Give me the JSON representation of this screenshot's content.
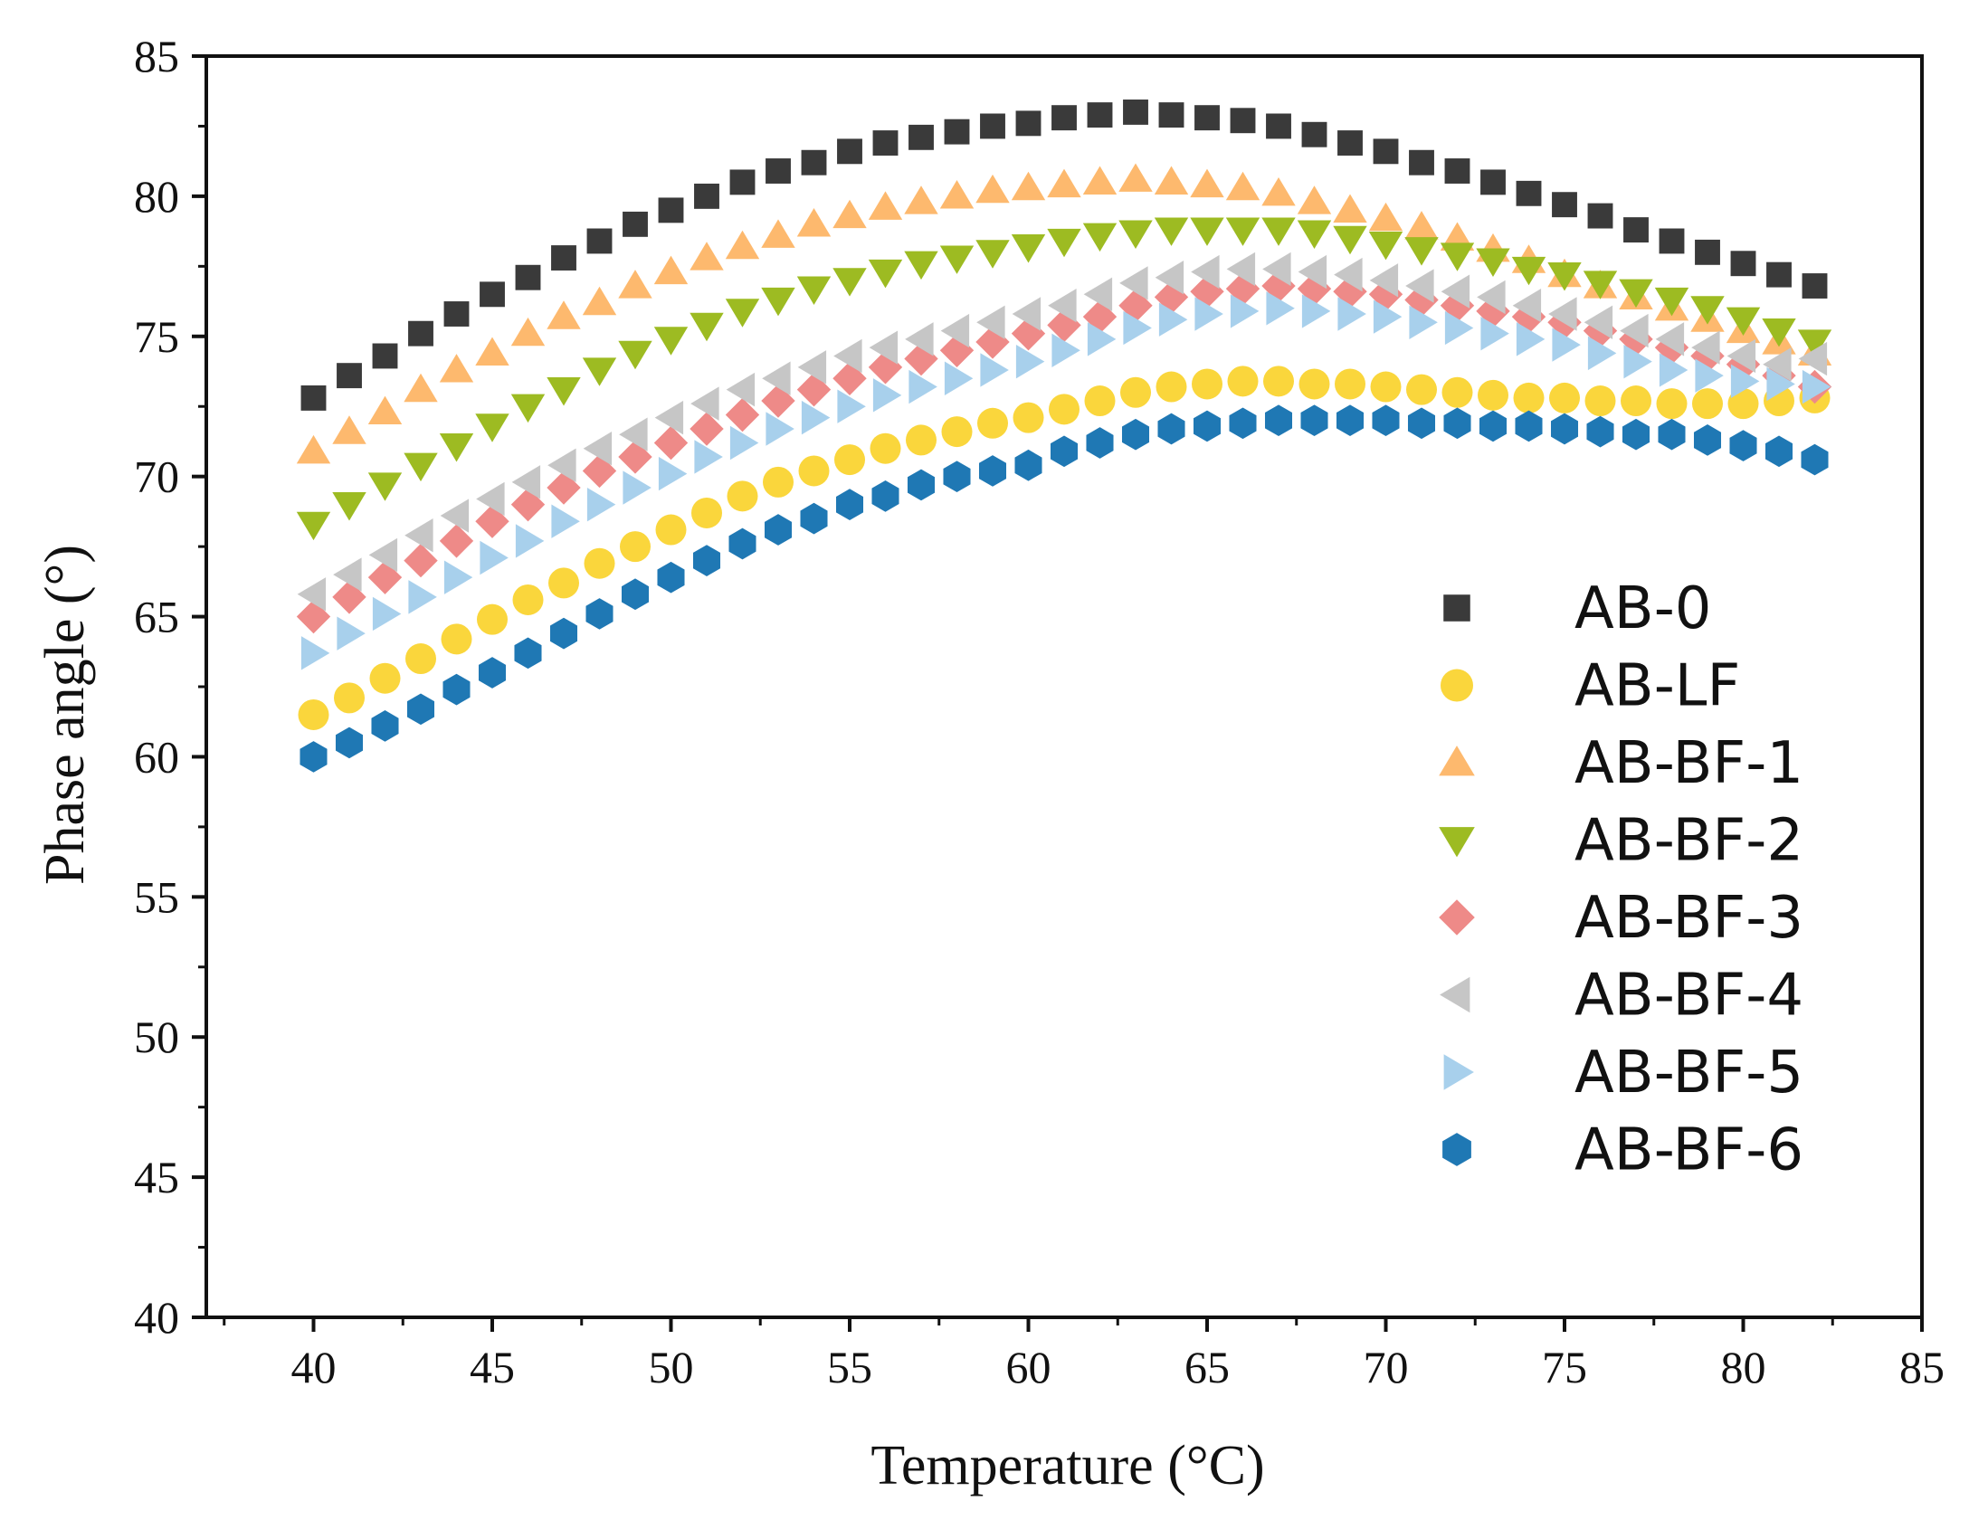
{
  "chart_data": {
    "type": "scatter",
    "title": "",
    "xlabel": "Temperature (°C)",
    "ylabel": "Phase angle (°)",
    "xlim": [
      37,
      85
    ],
    "ylim": [
      40,
      85
    ],
    "x_ticks": [
      "40",
      "45",
      "50",
      "55",
      "60",
      "65",
      "70",
      "75",
      "80",
      "85"
    ],
    "y_ticks": [
      "40",
      "45",
      "50",
      "55",
      "60",
      "65",
      "70",
      "75",
      "80",
      "85"
    ],
    "grid": false,
    "legend_position": "right",
    "x": [
      40,
      41,
      42,
      43,
      44,
      45,
      46,
      47,
      48,
      49,
      50,
      51,
      52,
      53,
      54,
      55,
      56,
      57,
      58,
      59,
      60,
      61,
      62,
      63,
      64,
      65,
      66,
      67,
      68,
      69,
      70,
      71,
      72,
      73,
      74,
      75,
      76,
      77,
      78,
      79,
      80,
      81,
      82
    ],
    "series": [
      {
        "name": "AB-0",
        "marker": "square",
        "color": "#3a3a3a",
        "values": [
          72.8,
          73.6,
          74.3,
          75.1,
          75.8,
          76.5,
          77.1,
          77.8,
          78.4,
          79.0,
          79.5,
          80.0,
          80.5,
          80.9,
          81.2,
          81.6,
          81.9,
          82.1,
          82.3,
          82.5,
          82.6,
          82.8,
          82.9,
          83.0,
          82.9,
          82.8,
          82.7,
          82.5,
          82.2,
          81.9,
          81.6,
          81.2,
          80.9,
          80.5,
          80.1,
          79.7,
          79.3,
          78.8,
          78.4,
          78.0,
          77.6,
          77.2,
          76.8
        ]
      },
      {
        "name": "AB-LF",
        "marker": "circle",
        "color": "#fad63c",
        "values": [
          61.5,
          62.1,
          62.8,
          63.5,
          64.2,
          64.9,
          65.6,
          66.2,
          66.9,
          67.5,
          68.1,
          68.7,
          69.3,
          69.8,
          70.2,
          70.6,
          71.0,
          71.3,
          71.6,
          71.9,
          72.1,
          72.4,
          72.7,
          73.0,
          73.2,
          73.3,
          73.4,
          73.4,
          73.3,
          73.3,
          73.2,
          73.1,
          73.0,
          72.9,
          72.8,
          72.8,
          72.7,
          72.7,
          72.6,
          72.6,
          72.6,
          72.7,
          72.8
        ]
      },
      {
        "name": "AB-BF-1",
        "marker": "triangle-up",
        "color": "#fdb96e",
        "values": [
          70.9,
          71.6,
          72.3,
          73.1,
          73.8,
          74.4,
          75.1,
          75.7,
          76.2,
          76.8,
          77.3,
          77.8,
          78.2,
          78.6,
          79.0,
          79.3,
          79.6,
          79.8,
          80.0,
          80.2,
          80.3,
          80.4,
          80.5,
          80.6,
          80.5,
          80.4,
          80.3,
          80.1,
          79.8,
          79.5,
          79.2,
          78.9,
          78.5,
          78.1,
          77.7,
          77.2,
          76.8,
          76.4,
          76.0,
          75.6,
          75.2,
          74.8,
          74.4
        ]
      },
      {
        "name": "AB-BF-2",
        "marker": "triangle-down",
        "color": "#9dbb22",
        "values": [
          68.3,
          69.0,
          69.7,
          70.4,
          71.1,
          71.8,
          72.5,
          73.1,
          73.8,
          74.4,
          74.9,
          75.4,
          75.9,
          76.3,
          76.7,
          77.0,
          77.3,
          77.6,
          77.8,
          78.0,
          78.2,
          78.4,
          78.6,
          78.7,
          78.8,
          78.8,
          78.8,
          78.8,
          78.7,
          78.5,
          78.3,
          78.1,
          77.9,
          77.7,
          77.4,
          77.2,
          76.9,
          76.6,
          76.3,
          76.0,
          75.6,
          75.2,
          74.8
        ]
      },
      {
        "name": "AB-BF-3",
        "marker": "diamond",
        "color": "#ee8a88",
        "values": [
          65.0,
          65.7,
          66.4,
          67.0,
          67.7,
          68.4,
          69.0,
          69.6,
          70.2,
          70.7,
          71.2,
          71.7,
          72.2,
          72.7,
          73.1,
          73.5,
          73.9,
          74.2,
          74.5,
          74.8,
          75.1,
          75.4,
          75.7,
          76.1,
          76.4,
          76.6,
          76.7,
          76.8,
          76.7,
          76.6,
          76.5,
          76.3,
          76.1,
          75.9,
          75.7,
          75.5,
          75.2,
          74.9,
          74.6,
          74.3,
          74.0,
          73.6,
          73.2
        ]
      },
      {
        "name": "AB-BF-4",
        "marker": "triangle-left",
        "color": "#c6c6c6",
        "values": [
          65.8,
          66.5,
          67.2,
          67.9,
          68.6,
          69.2,
          69.8,
          70.4,
          71.0,
          71.5,
          72.1,
          72.6,
          73.1,
          73.5,
          73.9,
          74.3,
          74.6,
          74.9,
          75.2,
          75.5,
          75.8,
          76.1,
          76.5,
          76.9,
          77.1,
          77.3,
          77.4,
          77.4,
          77.3,
          77.2,
          77.0,
          76.8,
          76.6,
          76.4,
          76.1,
          75.8,
          75.5,
          75.2,
          74.9,
          74.6,
          74.3,
          74.0,
          74.2
        ]
      },
      {
        "name": "AB-BF-5",
        "marker": "triangle-right",
        "color": "#a8d0ec",
        "values": [
          63.7,
          64.4,
          65.1,
          65.7,
          66.4,
          67.1,
          67.7,
          68.4,
          69.0,
          69.6,
          70.1,
          70.7,
          71.2,
          71.7,
          72.1,
          72.5,
          72.9,
          73.2,
          73.5,
          73.8,
          74.1,
          74.5,
          74.9,
          75.3,
          75.6,
          75.8,
          75.9,
          76.0,
          75.9,
          75.8,
          75.7,
          75.5,
          75.3,
          75.1,
          74.9,
          74.7,
          74.4,
          74.1,
          73.8,
          73.6,
          73.4,
          73.3,
          73.2
        ]
      },
      {
        "name": "AB-BF-6",
        "marker": "hexagon",
        "color": "#1f78b4",
        "values": [
          60.0,
          60.5,
          61.1,
          61.7,
          62.4,
          63.0,
          63.7,
          64.4,
          65.1,
          65.8,
          66.4,
          67.0,
          67.6,
          68.1,
          68.5,
          69.0,
          69.3,
          69.7,
          70.0,
          70.2,
          70.4,
          70.9,
          71.2,
          71.5,
          71.7,
          71.8,
          71.9,
          72.0,
          72.0,
          72.0,
          72.0,
          71.9,
          71.9,
          71.8,
          71.8,
          71.7,
          71.6,
          71.5,
          71.5,
          71.3,
          71.1,
          70.9,
          70.6
        ]
      }
    ]
  }
}
